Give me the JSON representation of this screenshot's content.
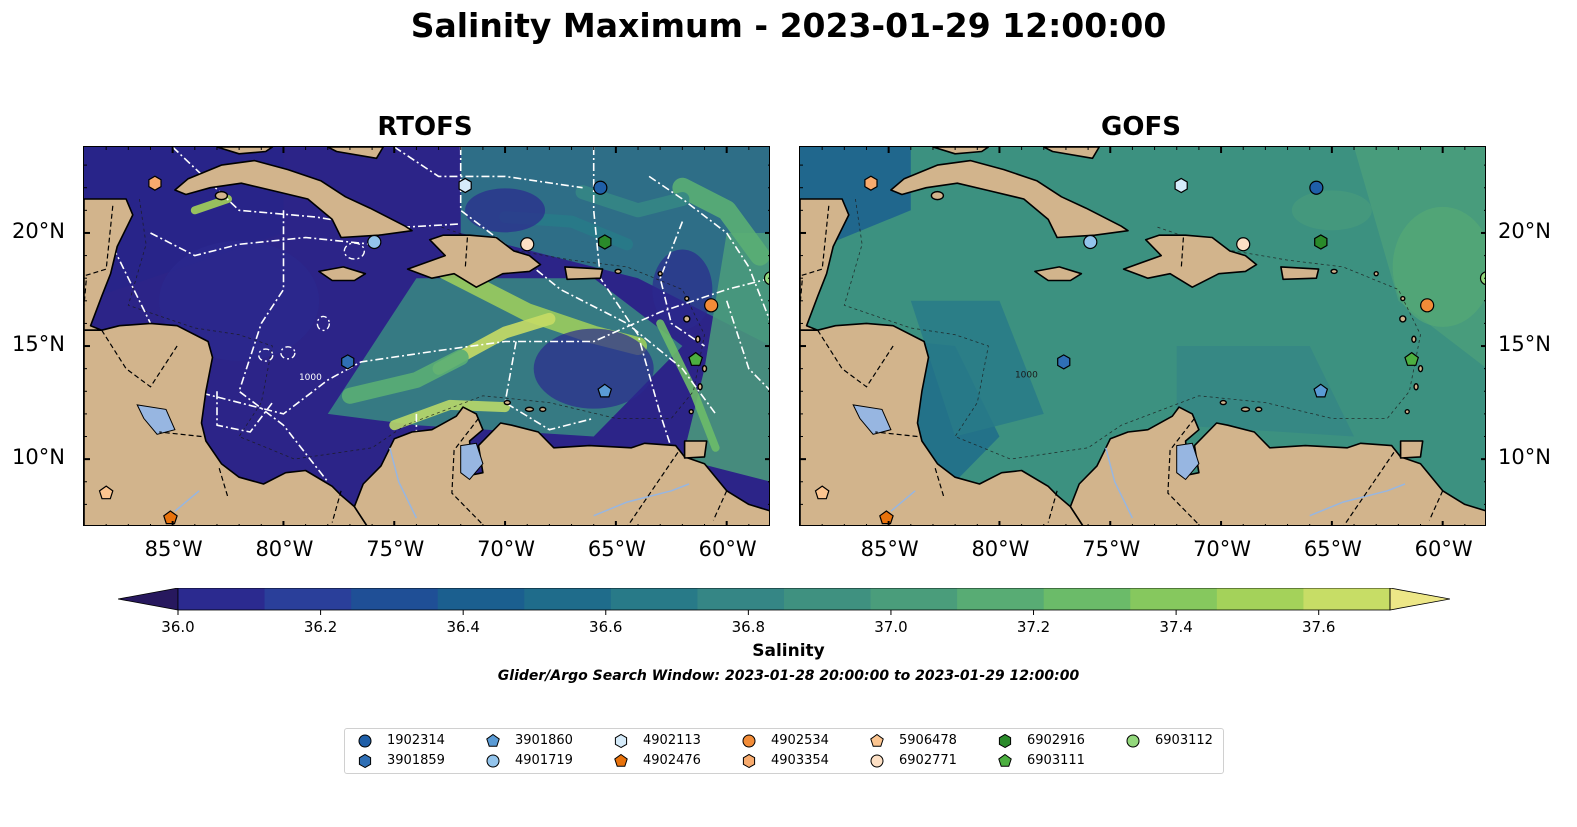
{
  "title": "Salinity Maximum - 2023-01-29 12:00:00",
  "panels": [
    {
      "title": "RTOFS",
      "model": "rtofs"
    },
    {
      "title": "GOFS",
      "model": "gofs"
    }
  ],
  "map_extent": {
    "lon": [
      -89,
      -58
    ],
    "lat": [
      7,
      23.8
    ]
  },
  "lat_ticks": [
    "20°N",
    "15°N",
    "10°N"
  ],
  "lat_tick_values": [
    20,
    15,
    10
  ],
  "lon_ticks": [
    "85°W",
    "80°W",
    "75°W",
    "70°W",
    "65°W",
    "60°W"
  ],
  "lon_tick_values": [
    -85,
    -80,
    -75,
    -70,
    -65,
    -60
  ],
  "contour_label": "1000",
  "colorbar": {
    "label": "Salinity",
    "range": [
      36.0,
      37.7
    ],
    "step": 0.1,
    "tick_labels": [
      "36.0",
      "36.2",
      "36.4",
      "36.6",
      "36.8",
      "37.0",
      "37.2",
      "37.4",
      "37.6"
    ],
    "tick_values": [
      36.0,
      36.2,
      36.4,
      36.6,
      36.8,
      37.0,
      37.2,
      37.4,
      37.6
    ],
    "colors": [
      "#27185e",
      "#2b2a8f",
      "#2a3f9a",
      "#1f4f96",
      "#1b5f8f",
      "#1f6c8b",
      "#287a88",
      "#358685",
      "#3f9180",
      "#4a9d7b",
      "#58ac74",
      "#6bbb69",
      "#86c85e",
      "#a4d25a",
      "#c7dd66",
      "#ede787"
    ],
    "extend": "both"
  },
  "search_window": "Glider/Argo Search Window: 2023-01-28 20:00:00 to 2023-01-29 12:00:00",
  "land_color": "#d2b48c",
  "lake_color": "#97b6e1",
  "floats": [
    {
      "id": "1902314",
      "marker": "circle",
      "color": "#1f5fa8",
      "lon": -65.7,
      "lat": 22.0
    },
    {
      "id": "3901859",
      "marker": "hexagon",
      "color": "#2f6fb5",
      "lon": -77.1,
      "lat": 14.3
    },
    {
      "id": "3901860",
      "marker": "pentagon",
      "color": "#5a9bd5",
      "lon": -65.5,
      "lat": 13.0
    },
    {
      "id": "4901719",
      "marker": "circle",
      "color": "#93c4ec",
      "lon": -75.9,
      "lat": 19.6
    },
    {
      "id": "4902113",
      "marker": "hexagon",
      "color": "#d5ebfa",
      "lon": -71.8,
      "lat": 22.1
    },
    {
      "id": "4902476",
      "marker": "pentagon",
      "color": "#e8720c",
      "lon": -85.1,
      "lat": 7.4
    },
    {
      "id": "4902534",
      "marker": "circle",
      "color": "#f28c38",
      "lon": -60.7,
      "lat": 16.8
    },
    {
      "id": "4903354",
      "marker": "hexagon",
      "color": "#f8ab6e",
      "lon": -85.8,
      "lat": 22.2
    },
    {
      "id": "5906478",
      "marker": "pentagon",
      "color": "#fcc590",
      "lon": -88.0,
      "lat": 8.5
    },
    {
      "id": "6902771",
      "marker": "circle",
      "color": "#fde0c5",
      "lon": -69.0,
      "lat": 19.5
    },
    {
      "id": "6902916",
      "marker": "hexagon",
      "color": "#2a8a2a",
      "lon": -65.5,
      "lat": 19.6
    },
    {
      "id": "6903111",
      "marker": "pentagon",
      "color": "#4caf40",
      "lon": -61.4,
      "lat": 14.4
    },
    {
      "id": "6903112",
      "marker": "circle",
      "color": "#93d87c",
      "lon": -58.0,
      "lat": 18.0
    }
  ]
}
